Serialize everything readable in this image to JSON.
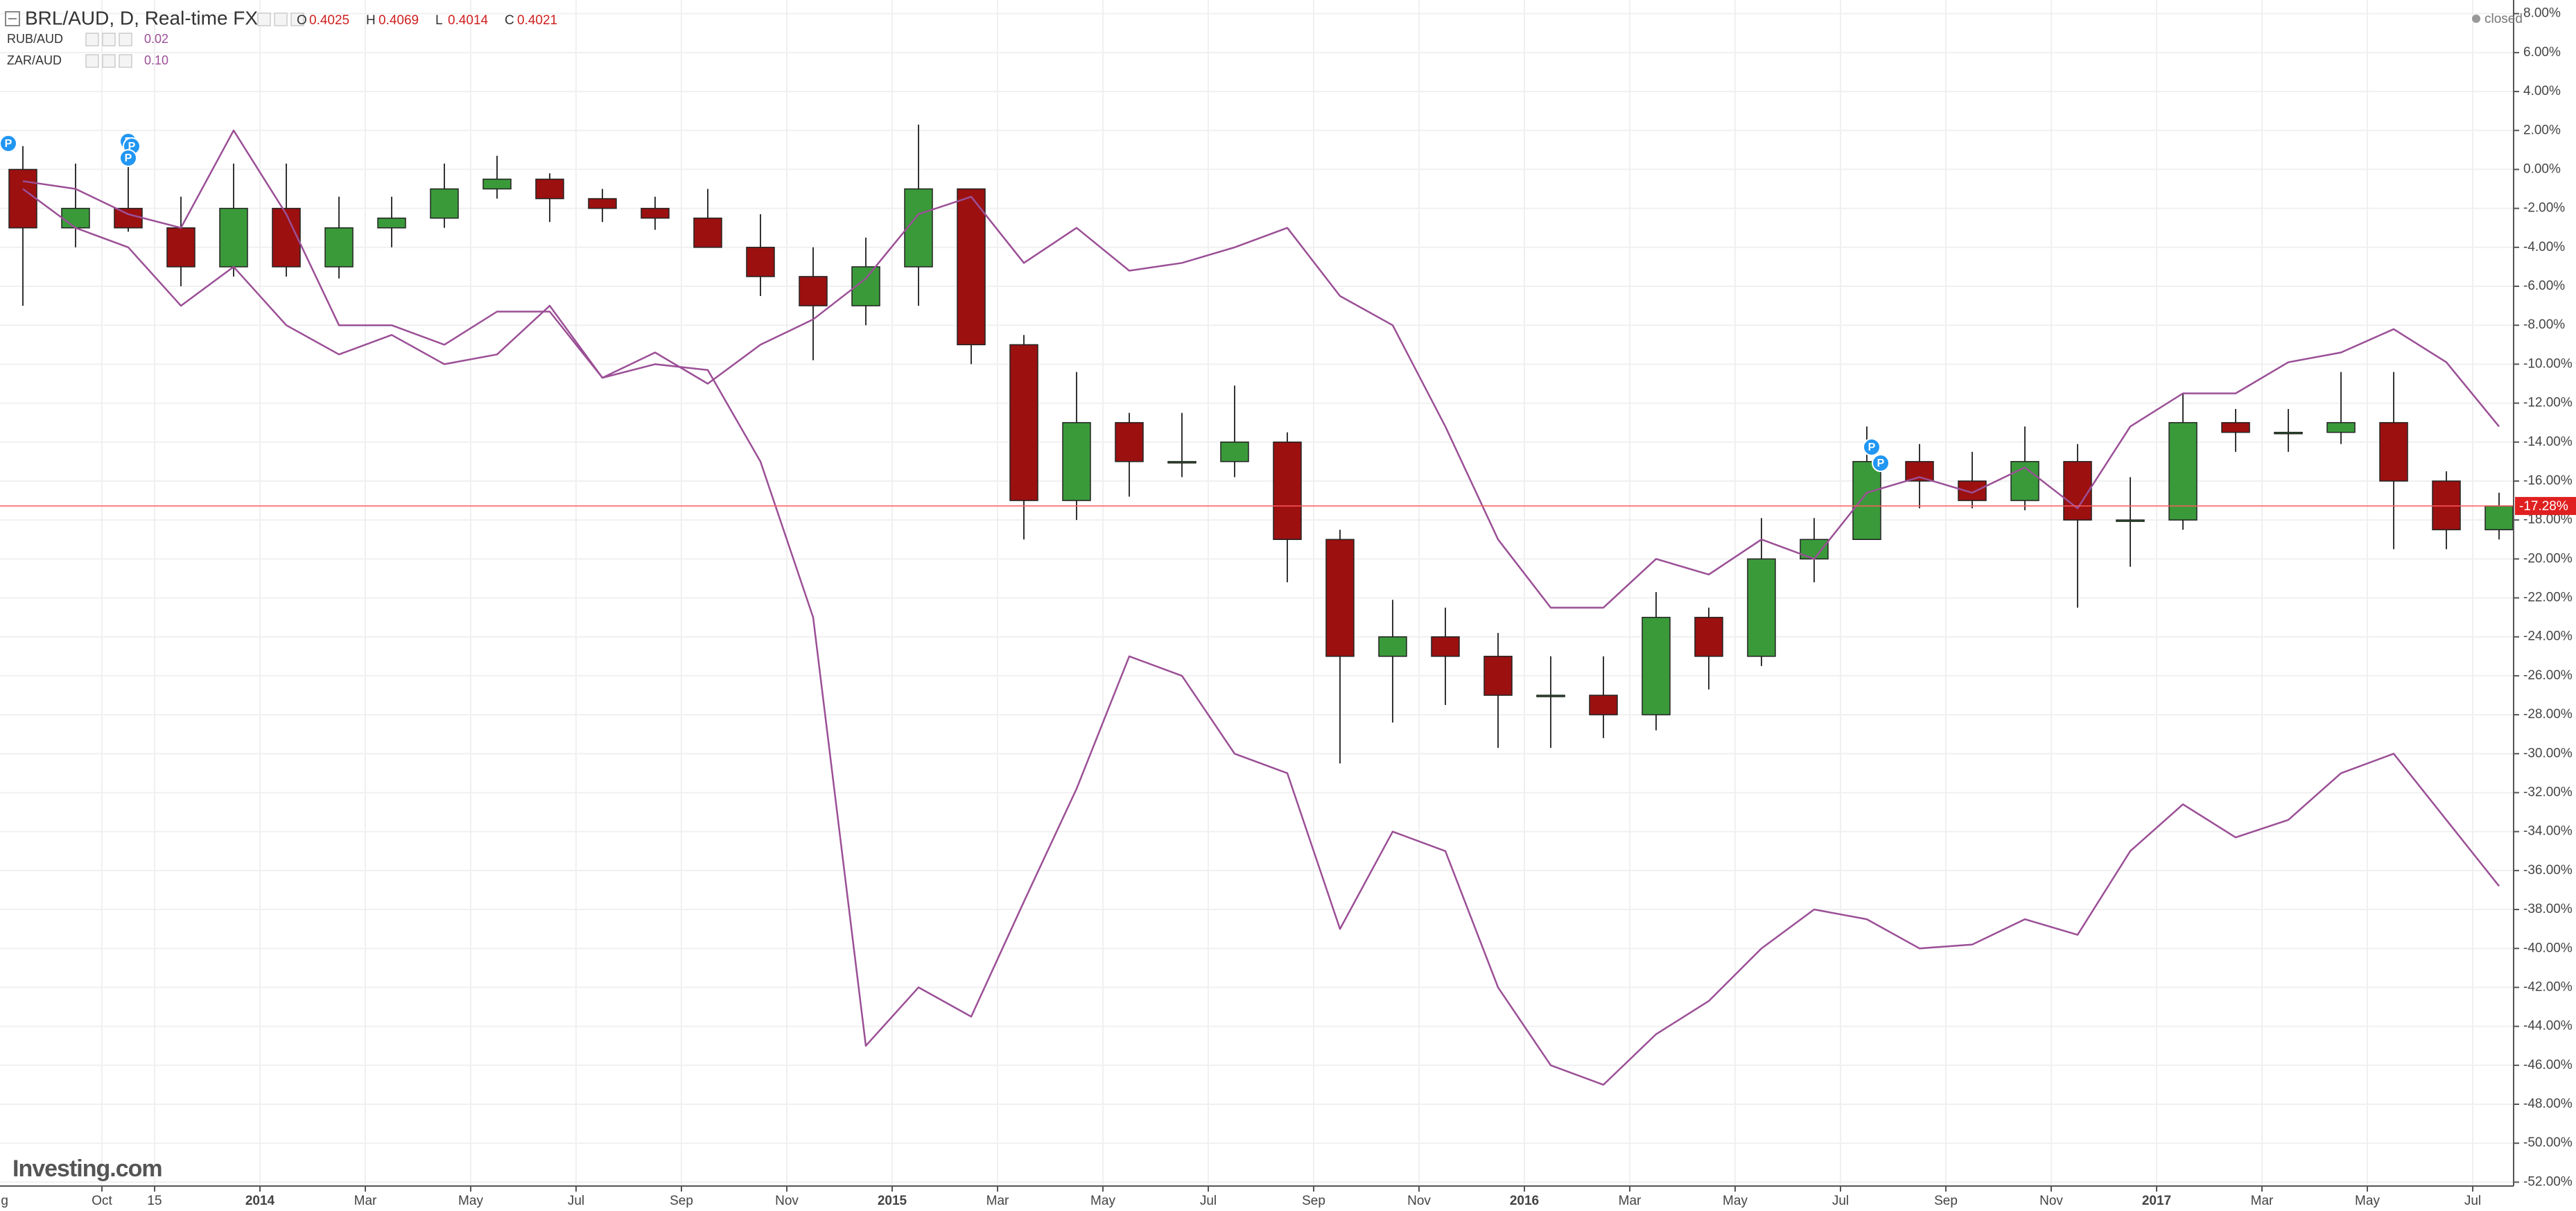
{
  "chart_data": {
    "type": "candlestick",
    "title": "BRL/AUD, D, Real-time FX",
    "quote": [
      {
        "label": "O",
        "value": 0.4025
      },
      {
        "label": "H",
        "value": 0.4069
      },
      {
        "label": "L",
        "value": 0.4014
      },
      {
        "label": "C",
        "value": 0.4021
      }
    ],
    "status": "closed",
    "logo": "Investing.com",
    "pin_label": "P",
    "current_label": "-17.28%",
    "x": [
      "2013-08",
      "2013-09",
      "2013-10",
      "2013-11",
      "2013-12",
      "2014-01",
      "2014-02",
      "2014-03",
      "2014-04",
      "2014-05",
      "2014-06",
      "2014-07",
      "2014-08",
      "2014-09",
      "2014-10",
      "2014-11",
      "2014-12",
      "2015-01",
      "2015-02",
      "2015-03",
      "2015-04",
      "2015-05",
      "2015-06",
      "2015-07",
      "2015-08",
      "2015-09",
      "2015-10",
      "2015-11",
      "2015-12",
      "2016-01",
      "2016-02",
      "2016-03",
      "2016-04",
      "2016-05",
      "2016-06",
      "2016-07",
      "2016-08",
      "2016-09",
      "2016-10",
      "2016-11",
      "2016-12",
      "2017-01",
      "2017-02",
      "2017-03",
      "2017-04",
      "2017-05",
      "2017-06",
      "2017-07"
    ],
    "series": [
      {
        "type": "candlestick",
        "up_color": "#3a9a3a",
        "down_color": "#9c1010",
        "open": [
          0,
          -3,
          -2,
          -3,
          -5,
          -2,
          -5,
          -3,
          -2.5,
          -1,
          -0.5,
          -1.5,
          -2,
          -2.5,
          -4,
          -5.5,
          -7,
          -5,
          -1,
          -9,
          -17,
          -13,
          -15,
          -15,
          -14,
          -19,
          -25,
          -24,
          -25,
          -27,
          -27,
          -28,
          -23,
          -25,
          -20,
          -19,
          -15,
          -16,
          -17,
          -15,
          -18,
          -18,
          -13,
          -13.5,
          -13.5,
          -13,
          -16,
          -18.5
        ],
        "high": [
          1.2,
          0.3,
          0.7,
          -1.4,
          0.3,
          0.3,
          -1.4,
          -1.4,
          0.3,
          0.7,
          -0.2,
          -1,
          -1.4,
          -1,
          -2.3,
          -4,
          -3.5,
          2.3,
          -1,
          -8.5,
          -10.4,
          -12.5,
          -12.5,
          -11.1,
          -13.5,
          -18.5,
          -22.1,
          -22.5,
          -23.8,
          -25,
          -25,
          -21.7,
          -22.5,
          -17.9,
          -17.9,
          -13.2,
          -14.1,
          -14.5,
          -13.2,
          -14.1,
          -15.8,
          -11.5,
          -12.3,
          -12.3,
          -10.4,
          -10.4,
          -15.5,
          -16.6
        ],
        "low": [
          -7,
          -4,
          -3.2,
          -6,
          -5.5,
          -5.5,
          -5.6,
          -4,
          -3,
          -1.5,
          -2.7,
          -2.7,
          -3.1,
          -4,
          -6.5,
          -9.8,
          -8,
          -7,
          -10,
          -19,
          -18,
          -16.8,
          -15.8,
          -15.8,
          -21.2,
          -30.5,
          -28.4,
          -27.5,
          -29.7,
          -29.7,
          -29.2,
          -28.8,
          -26.7,
          -25.5,
          -21.2,
          -19,
          -17.4,
          -17.4,
          -17.5,
          -22.5,
          -20.4,
          -18.5,
          -14.5,
          -14.5,
          -14.1,
          -19.5,
          -19.5,
          -19
        ],
        "close": [
          -3,
          -2,
          -3,
          -5,
          -2,
          -5,
          -3,
          -2.5,
          -1,
          -0.5,
          -1.5,
          -2,
          -2.5,
          -4,
          -5.5,
          -7,
          -5,
          -1,
          -9,
          -17,
          -13,
          -15,
          -15,
          -14,
          -19,
          -25,
          -24,
          -25,
          -27,
          -27,
          -28,
          -23,
          -25,
          -20,
          -19,
          -15,
          -16,
          -17,
          -15,
          -18,
          -18,
          -13,
          -13.5,
          -13.5,
          -13,
          -16,
          -18.5,
          -17.28
        ]
      },
      {
        "type": "line",
        "name": "RUB/AUD",
        "legend_value": "0.02",
        "color": "#9b4f96",
        "values": [
          -1,
          -3,
          -4,
          -7,
          -5,
          -8,
          -9.5,
          -8.5,
          -10,
          -9.5,
          -7,
          -10.7,
          -10,
          -10.3,
          -15,
          -23,
          -45,
          -42,
          -43.5,
          -37.6,
          -31.8,
          -25,
          -26,
          -30,
          -31,
          -39,
          -34,
          -35,
          -42,
          -46,
          -47,
          -44.4,
          -42.7,
          -40,
          -38,
          -38.5,
          -40,
          -39.8,
          -38.5,
          -39.3,
          -35,
          -32.6,
          -34.3,
          -33.4,
          -31,
          -30,
          -33.4,
          -36.8
        ]
      },
      {
        "type": "line",
        "name": "ZAR/AUD",
        "legend_value": "0.10",
        "color": "#9b4f96",
        "values": [
          -0.6,
          -1,
          -2.3,
          -3,
          2,
          -2.3,
          -8,
          -8,
          -9,
          -7.3,
          -7.3,
          -10.7,
          -9.4,
          -11,
          -9,
          -7.7,
          -5.6,
          -2.3,
          -1.4,
          -4.8,
          -3,
          -5.2,
          -4.8,
          -4,
          -3,
          -6.5,
          -8,
          -13.2,
          -19,
          -22.5,
          -22.5,
          -20,
          -20.8,
          -19,
          -20,
          -16.6,
          -15.8,
          -16.6,
          -15.3,
          -17.4,
          -13.2,
          -11.5,
          -11.5,
          -9.9,
          -9.4,
          -8.2,
          -9.9,
          -13.2
        ]
      }
    ],
    "ylim": [
      -52.2,
      8.7
    ],
    "yticks": [
      {
        "value": 8,
        "label": "8.00%"
      },
      {
        "value": 6,
        "label": "6.00%"
      },
      {
        "value": 4,
        "label": "4.00%"
      },
      {
        "value": 2,
        "label": "2.00%"
      },
      {
        "value": 0,
        "label": "0.00%"
      },
      {
        "value": -2,
        "label": "-2.00%"
      },
      {
        "value": -4,
        "label": "-4.00%"
      },
      {
        "value": -6,
        "label": "-6.00%"
      },
      {
        "value": -8,
        "label": "-8.00%"
      },
      {
        "value": -10,
        "label": "-10.00%"
      },
      {
        "value": -12,
        "label": "-12.00%"
      },
      {
        "value": -14,
        "label": "-14.00%"
      },
      {
        "value": -16,
        "label": "-16.00%"
      },
      {
        "value": -18,
        "label": "-18.00%"
      },
      {
        "value": -20,
        "label": "-20.00%"
      },
      {
        "value": -22,
        "label": "-22.00%"
      },
      {
        "value": -24,
        "label": "-24.00%"
      },
      {
        "value": -26,
        "label": "-26.00%"
      },
      {
        "value": -28,
        "label": "-28.00%"
      },
      {
        "value": -30,
        "label": "-30.00%"
      },
      {
        "value": -32,
        "label": "-32.00%"
      },
      {
        "value": -34,
        "label": "-34.00%"
      },
      {
        "value": -36,
        "label": "-36.00%"
      },
      {
        "value": -38,
        "label": "-38.00%"
      },
      {
        "value": -40,
        "label": "-40.00%"
      },
      {
        "value": -42,
        "label": "-42.00%"
      },
      {
        "value": -44,
        "label": "-44.00%"
      },
      {
        "value": -46,
        "label": "-46.00%"
      },
      {
        "value": -48,
        "label": "-48.00%"
      },
      {
        "value": -50,
        "label": "-50.00%"
      },
      {
        "value": -52,
        "label": "-52.00%"
      }
    ],
    "xticks": [
      {
        "value": "2013-08",
        "label": "Aug"
      },
      {
        "value": "2013-10",
        "label": "Oct"
      },
      {
        "value": "2013-11",
        "label": "15"
      },
      {
        "value": "2014-01",
        "label": "2014"
      },
      {
        "value": "2014-03",
        "label": "Mar"
      },
      {
        "value": "2014-05",
        "label": "May"
      },
      {
        "value": "2014-07",
        "label": "Jul"
      },
      {
        "value": "2014-09",
        "label": "Sep"
      },
      {
        "value": "2014-11",
        "label": "Nov"
      },
      {
        "value": "2015-01",
        "label": "2015"
      },
      {
        "value": "2015-03",
        "label": "Mar"
      },
      {
        "value": "2015-05",
        "label": "May"
      },
      {
        "value": "2015-07",
        "label": "Jul"
      },
      {
        "value": "2015-09",
        "label": "Sep"
      },
      {
        "value": "2015-11",
        "label": "Nov"
      },
      {
        "value": "2016-01",
        "label": "2016"
      },
      {
        "value": "2016-03",
        "label": "Mar"
      },
      {
        "value": "2016-05",
        "label": "May"
      },
      {
        "value": "2016-07",
        "label": "Jul"
      },
      {
        "value": "2016-09",
        "label": "Sep"
      },
      {
        "value": "2016-11",
        "label": "Nov"
      },
      {
        "value": "2017-01",
        "label": "2017"
      },
      {
        "value": "2017-03",
        "label": "Mar"
      },
      {
        "value": "2017-05",
        "label": "May"
      },
      {
        "value": "2017-07",
        "label": "Jul"
      }
    ],
    "grid": true,
    "price_line_color": "#ff5a5a"
  }
}
